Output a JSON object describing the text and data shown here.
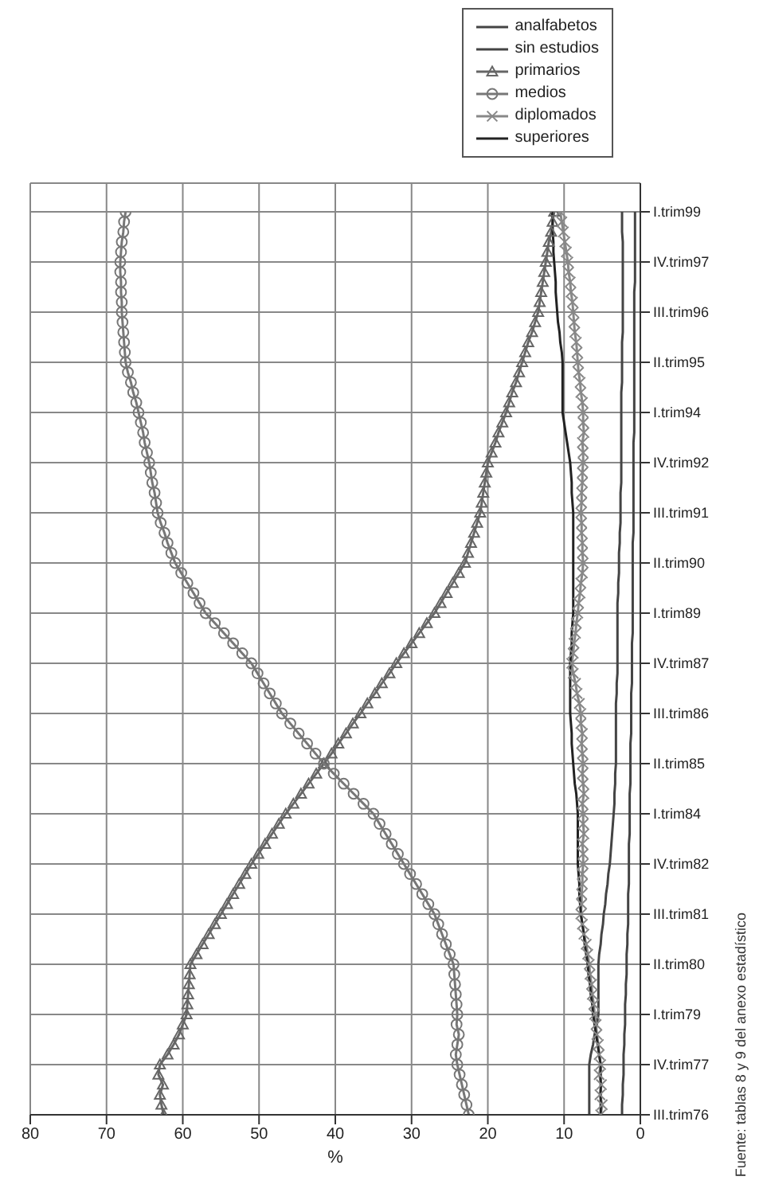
{
  "chart_data": {
    "type": "line",
    "orientation": "horizontal",
    "categories": [
      "I.trim99",
      null,
      null,
      null,
      null,
      "IV.trim97",
      null,
      null,
      null,
      null,
      "III.trim96",
      null,
      null,
      null,
      null,
      "II.trim95",
      null,
      null,
      null,
      null,
      "I.trim94",
      null,
      null,
      null,
      null,
      "IV.trim92",
      null,
      null,
      null,
      null,
      "III.trim91",
      null,
      null,
      null,
      null,
      "II.trim90",
      null,
      null,
      null,
      null,
      "I.trim89",
      null,
      null,
      null,
      null,
      "IV.trim87",
      null,
      null,
      null,
      null,
      "III.trim86",
      null,
      null,
      null,
      null,
      "II.trim85",
      null,
      null,
      null,
      null,
      "I.trim84",
      null,
      null,
      null,
      null,
      "IV.trim82",
      null,
      null,
      null,
      null,
      "III.trim81",
      null,
      null,
      null,
      null,
      "II.trim80",
      null,
      null,
      null,
      null,
      "I.trim79",
      null,
      null,
      null,
      null,
      "IV.trim77",
      null,
      null,
      null,
      null,
      "III.trim76"
    ],
    "series": [
      {
        "name": "analfabetos",
        "color": "#444444",
        "marker": "none",
        "values": [
          0.7,
          0.7,
          0.7,
          0.7,
          0.7,
          0.7,
          0.7,
          0.7,
          0.8,
          0.8,
          0.8,
          0.8,
          0.8,
          0.8,
          0.8,
          0.8,
          0.8,
          0.8,
          0.8,
          0.8,
          0.8,
          0.8,
          0.8,
          0.9,
          0.9,
          0.9,
          0.9,
          0.9,
          0.9,
          0.9,
          0.9,
          0.9,
          0.9,
          1,
          1,
          1,
          1,
          1,
          1,
          1,
          1,
          1,
          1,
          1.1,
          1.1,
          1.1,
          1.1,
          1.1,
          1.2,
          1.2,
          1.2,
          1.2,
          1.2,
          1.3,
          1.3,
          1.3,
          1.3,
          1.3,
          1.4,
          1.4,
          1.4,
          1.4,
          1.4,
          1.5,
          1.5,
          1.5,
          1.5,
          1.5,
          1.6,
          1.6,
          1.6,
          1.6,
          1.7,
          1.7,
          1.8,
          1.8,
          1.8,
          1.9,
          1.9,
          2,
          2,
          2,
          2.1,
          2.1,
          2.2,
          2.2,
          2.2,
          2.3,
          2.3,
          2.4,
          2.4
        ]
      },
      {
        "name": "sin estudios",
        "color": "#444444",
        "marker": "none",
        "values": [
          2.4,
          2.4,
          2.4,
          2.3,
          2.3,
          2.3,
          2.3,
          2.3,
          2.3,
          2.3,
          2.3,
          2.3,
          2.3,
          2.4,
          2.4,
          2.4,
          2.4,
          2.4,
          2.5,
          2.5,
          2.5,
          2.5,
          2.5,
          2.5,
          2.5,
          2.5,
          2.5,
          2.5,
          2.6,
          2.6,
          2.6,
          2.6,
          2.7,
          2.7,
          2.8,
          2.8,
          2.8,
          2.9,
          2.9,
          3,
          3,
          3,
          3,
          3,
          3,
          3,
          3,
          3.1,
          3.1,
          3.2,
          3.2,
          3.2,
          3.2,
          3.2,
          3.2,
          3.2,
          3.3,
          3.3,
          3.4,
          3.4,
          3.5,
          3.6,
          3.7,
          3.8,
          3.9,
          4,
          4.2,
          4.3,
          4.5,
          4.6,
          4.8,
          4.9,
          5.1,
          5.2,
          5.4,
          5.5,
          5.5,
          5.5,
          5.5,
          5.5,
          5.5,
          5.7,
          6,
          6.2,
          6.5,
          6.7,
          6.7,
          6.7,
          6.7,
          6.7,
          6.7
        ]
      },
      {
        "name": "primarios",
        "color": "#666666",
        "marker": "triangle",
        "values": [
          11.3,
          11.5,
          11.7,
          12,
          12.2,
          12.4,
          12.6,
          12.8,
          13,
          13.2,
          13.4,
          13.8,
          14.2,
          14.7,
          15.1,
          15.5,
          15.9,
          16.3,
          16.8,
          17.2,
          17.6,
          18.1,
          18.6,
          19,
          19.5,
          20,
          20.2,
          20.4,
          20.6,
          20.8,
          21,
          21.4,
          21.8,
          22.2,
          22.6,
          23,
          23.8,
          24.6,
          25.4,
          26.2,
          27,
          28,
          29,
          30,
          31,
          32,
          32.9,
          33.9,
          34.8,
          35.8,
          36.7,
          37.7,
          38.6,
          39.6,
          40.5,
          41.5,
          42.5,
          43.5,
          44.5,
          45.5,
          46.5,
          47.4,
          48.3,
          49.2,
          50.1,
          51,
          51.8,
          52.6,
          53.4,
          54.2,
          55,
          55.8,
          56.6,
          57.4,
          58.2,
          59,
          59.1,
          59.2,
          59.3,
          59.4,
          59.5,
          60,
          60.5,
          61.2,
          62,
          63,
          63.2,
          62.6,
          63,
          62.8,
          62.5
        ]
      },
      {
        "name": "medios",
        "color": "#777777",
        "marker": "circle",
        "values": [
          67.5,
          67.7,
          67.8,
          68,
          68.1,
          68.2,
          68.2,
          68.1,
          68.1,
          68,
          68,
          67.9,
          67.8,
          67.7,
          67.6,
          67.5,
          67.2,
          66.8,
          66.5,
          66.1,
          65.8,
          65.5,
          65.2,
          65,
          64.7,
          64.4,
          64.2,
          64,
          63.7,
          63.5,
          63.3,
          62.9,
          62.4,
          62,
          61.5,
          61,
          60.2,
          59.4,
          58.6,
          57.8,
          57,
          55.8,
          54.6,
          53.4,
          52.2,
          51,
          50.2,
          49.4,
          48.6,
          47.8,
          47,
          45.9,
          44.8,
          43.7,
          42.6,
          41.5,
          40.2,
          38.9,
          37.6,
          36.3,
          35,
          34.2,
          33.4,
          32.6,
          31.8,
          31,
          30.2,
          29.4,
          28.6,
          27.8,
          27,
          26.5,
          26,
          25.5,
          25,
          24.5,
          24.4,
          24.3,
          24.2,
          24.1,
          24,
          24.1,
          23.8,
          24,
          24.2,
          24,
          23.7,
          23.4,
          23.1,
          22.8,
          22.5
        ]
      },
      {
        "name": "diplomados",
        "color": "#888888",
        "marker": "cross",
        "values": [
          10.5,
          10.3,
          10.1,
          9.9,
          9.7,
          9.5,
          9.4,
          9.2,
          9.1,
          8.9,
          8.8,
          8.7,
          8.6,
          8.4,
          8.3,
          8.2,
          8.1,
          7.9,
          7.8,
          7.6,
          7.5,
          7.5,
          7.4,
          7.6,
          7.5,
          7.5,
          7.6,
          7.6,
          7.7,
          7.7,
          7.8,
          7.7,
          7.7,
          7.6,
          7.6,
          7.5,
          7.6,
          7.8,
          7.9,
          8.1,
          8.2,
          8.4,
          8.5,
          8.7,
          8.8,
          9,
          8.8,
          8.5,
          8.3,
          8,
          7.8,
          7.8,
          7.6,
          7.7,
          7.6,
          7.5,
          7.6,
          7.5,
          7.4,
          7.6,
          7.5,
          7.5,
          7.4,
          7.6,
          7.5,
          7.5,
          7.6,
          7.6,
          7.7,
          7.7,
          7.8,
          7.6,
          7.4,
          7.1,
          6.9,
          6.7,
          6.6,
          6.4,
          6.3,
          6.1,
          6,
          5.8,
          5.7,
          5.5,
          5.4,
          5.2,
          5.4,
          5.1,
          5.3,
          5,
          5.2
        ]
      },
      {
        "name": "superiores",
        "color": "#222222",
        "marker": "none",
        "values": [
          11.6,
          11.5,
          11.5,
          11.4,
          11.4,
          11.3,
          11.2,
          11.1,
          11.1,
          11,
          10.9,
          10.8,
          10.6,
          10.5,
          10.3,
          10.2,
          10.2,
          10.2,
          10.2,
          10.2,
          10.2,
          10,
          9.8,
          9.6,
          9.4,
          9.2,
          9.1,
          9,
          9,
          8.9,
          8.8,
          8.8,
          8.8,
          8.8,
          8.8,
          8.8,
          8.8,
          8.8,
          8.8,
          8.8,
          8.8,
          8.9,
          9,
          9,
          9.1,
          9.2,
          9.2,
          9.2,
          9.2,
          9.2,
          9.2,
          9.1,
          9,
          9,
          8.9,
          8.8,
          8.7,
          8.6,
          8.4,
          8.3,
          8.2,
          8.2,
          8.2,
          8.2,
          8.2,
          8.2,
          8.1,
          8,
          8,
          7.9,
          7.8,
          7.6,
          7.4,
          7.3,
          7.1,
          6.9,
          6.8,
          6.6,
          6.5,
          6.3,
          6.2,
          6,
          5.8,
          5.6,
          5.4,
          5.2,
          5.2,
          5.2,
          5.2,
          5.2,
          5.2
        ]
      }
    ],
    "xlabel": "%",
    "xlim": [
      80,
      0
    ],
    "xticks": [
      0,
      10,
      20,
      30,
      40,
      50,
      60,
      70,
      80
    ],
    "grid": true,
    "legend": "top right",
    "annotations": [
      "Fuente: tablas 8 y 9 del anexo estadístico"
    ]
  }
}
